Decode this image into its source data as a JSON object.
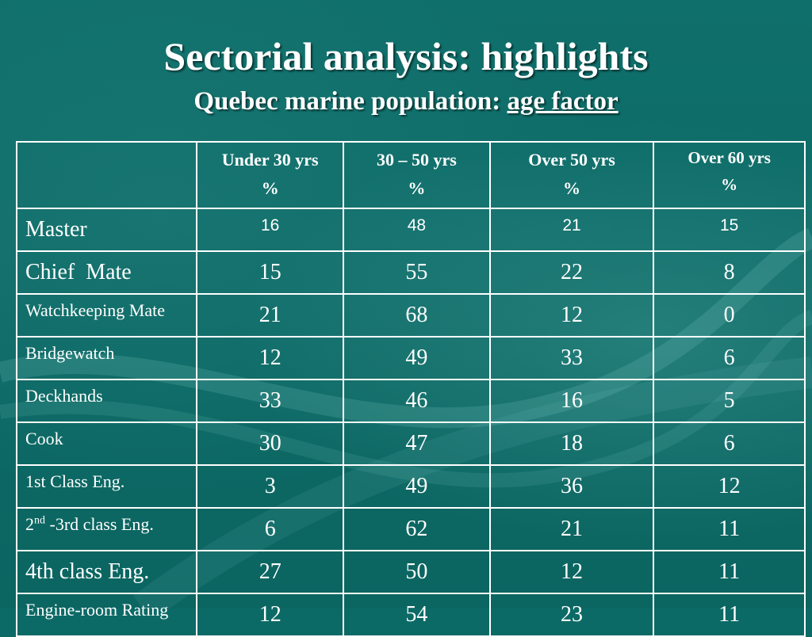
{
  "slide": {
    "title": "Sectorial analysis: highlights",
    "subtitle_prefix": "Quebec marine population: ",
    "subtitle_emphasis": "age factor"
  },
  "table": {
    "columns": [
      {
        "label": "Under 30 yrs",
        "unit": "%"
      },
      {
        "label": "30 – 50 yrs",
        "unit": "%"
      },
      {
        "label": "Over 50 yrs",
        "unit": "%"
      },
      {
        "label": "Over 60 yrs",
        "unit": "%"
      }
    ],
    "rows": [
      {
        "label": "Master",
        "values": [
          "16",
          "48",
          "21",
          "15"
        ]
      },
      {
        "label": "Chief  Mate",
        "values": [
          "15",
          "55",
          "22",
          "8"
        ]
      },
      {
        "label": "Watchkeeping Mate",
        "values": [
          "21",
          "68",
          "12",
          "0"
        ]
      },
      {
        "label": "Bridgewatch",
        "values": [
          "12",
          "49",
          "33",
          "6"
        ]
      },
      {
        "label": "Deckhands",
        "values": [
          "33",
          "46",
          "16",
          "5"
        ]
      },
      {
        "label": "Cook",
        "values": [
          "30",
          "47",
          "18",
          "6"
        ]
      },
      {
        "label": "1st Class Eng.",
        "values": [
          "3",
          "49",
          "36",
          "12"
        ]
      },
      {
        "label_num": "2",
        "label_sup": "nd",
        "label_rest": " -3rd class Eng.",
        "values": [
          "6",
          "62",
          "21",
          "11"
        ]
      },
      {
        "label": "4th class Eng.",
        "values": [
          "27",
          "50",
          "12",
          "11"
        ]
      },
      {
        "label": "Engine-room Rating",
        "values": [
          "12",
          "54",
          "23",
          "11"
        ]
      }
    ]
  }
}
